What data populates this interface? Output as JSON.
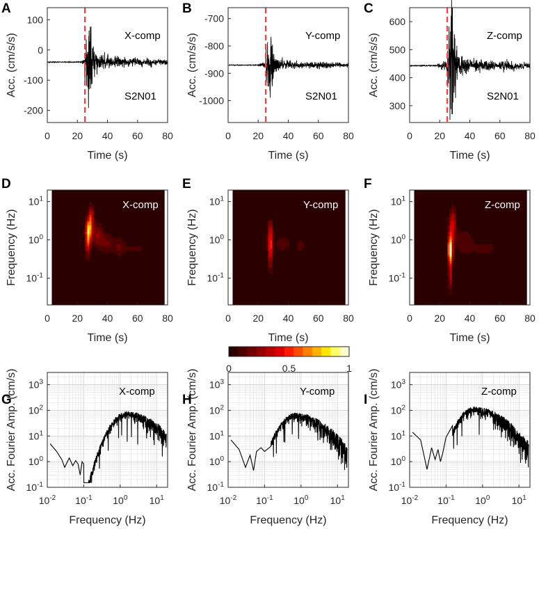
{
  "figure": {
    "time_label": "Time (s)",
    "freq_label": "Frequency (Hz)",
    "acc_label": "Acc. (cm/s/s)",
    "fas_label": "Acc. Fourier Amp. (cm/s)",
    "station": "S2N01",
    "colors": {
      "trace": "#000000",
      "marker": "#ff3b3b",
      "bg_dark": "#3b0000"
    }
  },
  "colorbar": {
    "ticks": [
      "0",
      "0.5",
      "1"
    ],
    "colors": [
      "#2a0000",
      "#4d0000",
      "#700000",
      "#940000",
      "#b80000",
      "#dc0000",
      "#ff1a00",
      "#ff4d00",
      "#ff8000",
      "#ffb300",
      "#ffe600",
      "#ffff66",
      "#ffffcc"
    ]
  },
  "chart_data": [
    {
      "panel": "A",
      "type": "line",
      "title": "X-comp",
      "station": "S2N01",
      "xlabel": "Time (s)",
      "ylabel": "Acc. (cm/s/s)",
      "xlim": [
        0,
        80
      ],
      "ylim": [
        -240,
        140
      ],
      "xticks": [
        "0",
        "20",
        "40",
        "60",
        "80"
      ],
      "yticks": [
        "100",
        "0",
        "-100",
        "-200"
      ],
      "baseline": -40,
      "p_arrival": 25,
      "onset": 22,
      "peak_amp": 135,
      "decay": 10
    },
    {
      "panel": "B",
      "type": "line",
      "title": "Y-comp",
      "station": "S2N01",
      "xlabel": "Time (s)",
      "ylabel": "Acc. (cm/s/s)",
      "xlim": [
        0,
        80
      ],
      "ylim": [
        -1080,
        -660
      ],
      "xticks": [
        "0",
        "20",
        "40",
        "60",
        "80"
      ],
      "yticks": [
        "-700",
        "-800",
        "-900",
        "-1000"
      ],
      "baseline": -870,
      "p_arrival": 25,
      "onset": 20,
      "peak_amp": 115,
      "decay": 8
    },
    {
      "panel": "C",
      "type": "line",
      "title": "Z-comp",
      "station": "S2N01",
      "xlabel": "Time (s)",
      "ylabel": "Acc. (cm/s/s)",
      "xlim": [
        0,
        80
      ],
      "ylim": [
        240,
        650
      ],
      "xticks": [
        "0",
        "20",
        "40",
        "60",
        "80"
      ],
      "yticks": [
        "600",
        "500",
        "400",
        "300"
      ],
      "baseline": 443,
      "p_arrival": 25,
      "onset": 18,
      "peak_amp": 175,
      "decay": 9
    },
    {
      "panel": "D",
      "type": "heatmap",
      "title": "X-comp",
      "xlabel": "Time (s)",
      "ylabel": "Frequency (Hz)",
      "xlim": [
        0,
        80
      ],
      "ylim_log": [
        0.02,
        20
      ],
      "data_xlim": [
        3,
        78
      ],
      "xticks": [
        "0",
        "20",
        "40",
        "60",
        "80"
      ],
      "blobs": [
        {
          "t": 27,
          "f": 1.0,
          "st": 1.6,
          "sf": 0.38,
          "a": 0.58
        },
        {
          "t": 28,
          "f": 2.1,
          "st": 2.2,
          "sf": 0.25,
          "a": 0.55
        },
        {
          "t": 29,
          "f": 4.5,
          "st": 1.5,
          "sf": 0.25,
          "a": 0.38
        },
        {
          "t": 33,
          "f": 1.4,
          "st": 4.5,
          "sf": 0.3,
          "a": 0.22
        },
        {
          "t": 40,
          "f": 0.8,
          "st": 6,
          "sf": 0.25,
          "a": 0.16
        },
        {
          "t": 48,
          "f": 0.65,
          "st": 3,
          "sf": 0.3,
          "a": 0.12
        },
        {
          "t": 58,
          "f": 0.6,
          "st": 10,
          "sf": 0.15,
          "a": 0.1
        }
      ]
    },
    {
      "panel": "E",
      "type": "heatmap",
      "title": "Y-comp",
      "xlabel": "Time (s)",
      "ylabel": "Frequency (Hz)",
      "xlim": [
        0,
        80
      ],
      "ylim_log": [
        0.02,
        20
      ],
      "data_xlim": [
        3,
        78
      ],
      "xticks": [
        "0",
        "20",
        "40",
        "60",
        "80"
      ],
      "blobs": [
        {
          "t": 28,
          "f": 0.75,
          "st": 1.6,
          "sf": 0.35,
          "a": 0.52
        },
        {
          "t": 28,
          "f": 2.0,
          "st": 1.5,
          "sf": 0.25,
          "a": 0.25
        },
        {
          "t": 28,
          "f": 0.25,
          "st": 1.2,
          "sf": 0.3,
          "a": 0.2
        },
        {
          "t": 36,
          "f": 0.8,
          "st": 6,
          "sf": 0.25,
          "a": 0.12
        },
        {
          "t": 48,
          "f": 0.7,
          "st": 4,
          "sf": 0.25,
          "a": 0.1
        }
      ]
    },
    {
      "panel": "F",
      "type": "heatmap",
      "title": "Z-comp",
      "xlabel": "Time (s)",
      "ylabel": "Frequency (Hz)",
      "xlim": [
        0,
        80
      ],
      "ylim_log": [
        0.02,
        20
      ],
      "data_xlim": [
        3,
        78
      ],
      "xticks": [
        "0",
        "20",
        "40",
        "60",
        "80"
      ],
      "blobs": [
        {
          "t": 27,
          "f": 0.55,
          "st": 1.5,
          "sf": 0.32,
          "a": 0.95
        },
        {
          "t": 27,
          "f": 0.13,
          "st": 1.2,
          "sf": 0.45,
          "a": 0.35
        },
        {
          "t": 28,
          "f": 1.8,
          "st": 2.2,
          "sf": 0.35,
          "a": 0.38
        },
        {
          "t": 29,
          "f": 4.0,
          "st": 2.0,
          "sf": 0.3,
          "a": 0.2
        },
        {
          "t": 36,
          "f": 0.9,
          "st": 6,
          "sf": 0.35,
          "a": 0.14
        },
        {
          "t": 50,
          "f": 0.6,
          "st": 10,
          "sf": 0.25,
          "a": 0.1
        }
      ]
    },
    {
      "panel": "G",
      "type": "line",
      "title": "X-comp",
      "xlabel": "Frequency (Hz)",
      "ylabel": "Acc. Fourier Amp. (cm/s)",
      "xlim": [
        0.01,
        20
      ],
      "ylim": [
        0.1,
        3000
      ],
      "scale": "loglog",
      "xticks": [
        "10-2",
        "10-1",
        "100",
        "101"
      ],
      "yticks": [
        "103",
        "102",
        "101",
        "100",
        "10-1"
      ],
      "low_points": [
        [
          0.012,
          5
        ],
        [
          0.018,
          2.5
        ],
        [
          0.025,
          1.2
        ],
        [
          0.03,
          0.6
        ],
        [
          0.04,
          1.4
        ],
        [
          0.05,
          0.7
        ],
        [
          0.06,
          1.1
        ],
        [
          0.07,
          0.8
        ],
        [
          0.08,
          0.3
        ],
        [
          0.09,
          1.0
        ],
        [
          0.1,
          0.8
        ]
      ],
      "peak": 90,
      "noise_seed": 11
    },
    {
      "panel": "H",
      "type": "line",
      "title": "Y-comp",
      "xlabel": "Frequency (Hz)",
      "ylabel": "Acc. Fourier Amp. (cm/s)",
      "xlim": [
        0.01,
        20
      ],
      "ylim": [
        0.1,
        3000
      ],
      "scale": "loglog",
      "xticks": [
        "10-2",
        "10-1",
        "100",
        "101"
      ],
      "yticks": [
        "103",
        "102",
        "101",
        "100",
        "10-1"
      ],
      "low_points": [
        [
          0.012,
          7
        ],
        [
          0.02,
          3
        ],
        [
          0.03,
          0.6
        ],
        [
          0.04,
          1.8
        ],
        [
          0.05,
          0.45
        ],
        [
          0.06,
          2.5
        ],
        [
          0.08,
          3.5
        ],
        [
          0.1,
          2.5
        ],
        [
          0.15,
          4
        ]
      ],
      "peak": 80,
      "noise_seed": 23
    },
    {
      "panel": "I",
      "type": "line",
      "title": "Z-comp",
      "xlabel": "Frequency (Hz)",
      "ylabel": "Acc. Fourier Amp. (cm/s)",
      "xlim": [
        0.01,
        20
      ],
      "ylim": [
        0.1,
        3000
      ],
      "scale": "loglog",
      "xticks": [
        "10-2",
        "10-1",
        "100",
        "101"
      ],
      "yticks": [
        "103",
        "102",
        "101",
        "100",
        "10-1"
      ],
      "low_points": [
        [
          0.012,
          14
        ],
        [
          0.02,
          7
        ],
        [
          0.03,
          0.5
        ],
        [
          0.04,
          3.5
        ],
        [
          0.05,
          1.2
        ],
        [
          0.06,
          3
        ],
        [
          0.07,
          1.0
        ],
        [
          0.08,
          2
        ],
        [
          0.1,
          9
        ],
        [
          0.15,
          25
        ]
      ],
      "peak": 140,
      "noise_seed": 37
    }
  ]
}
